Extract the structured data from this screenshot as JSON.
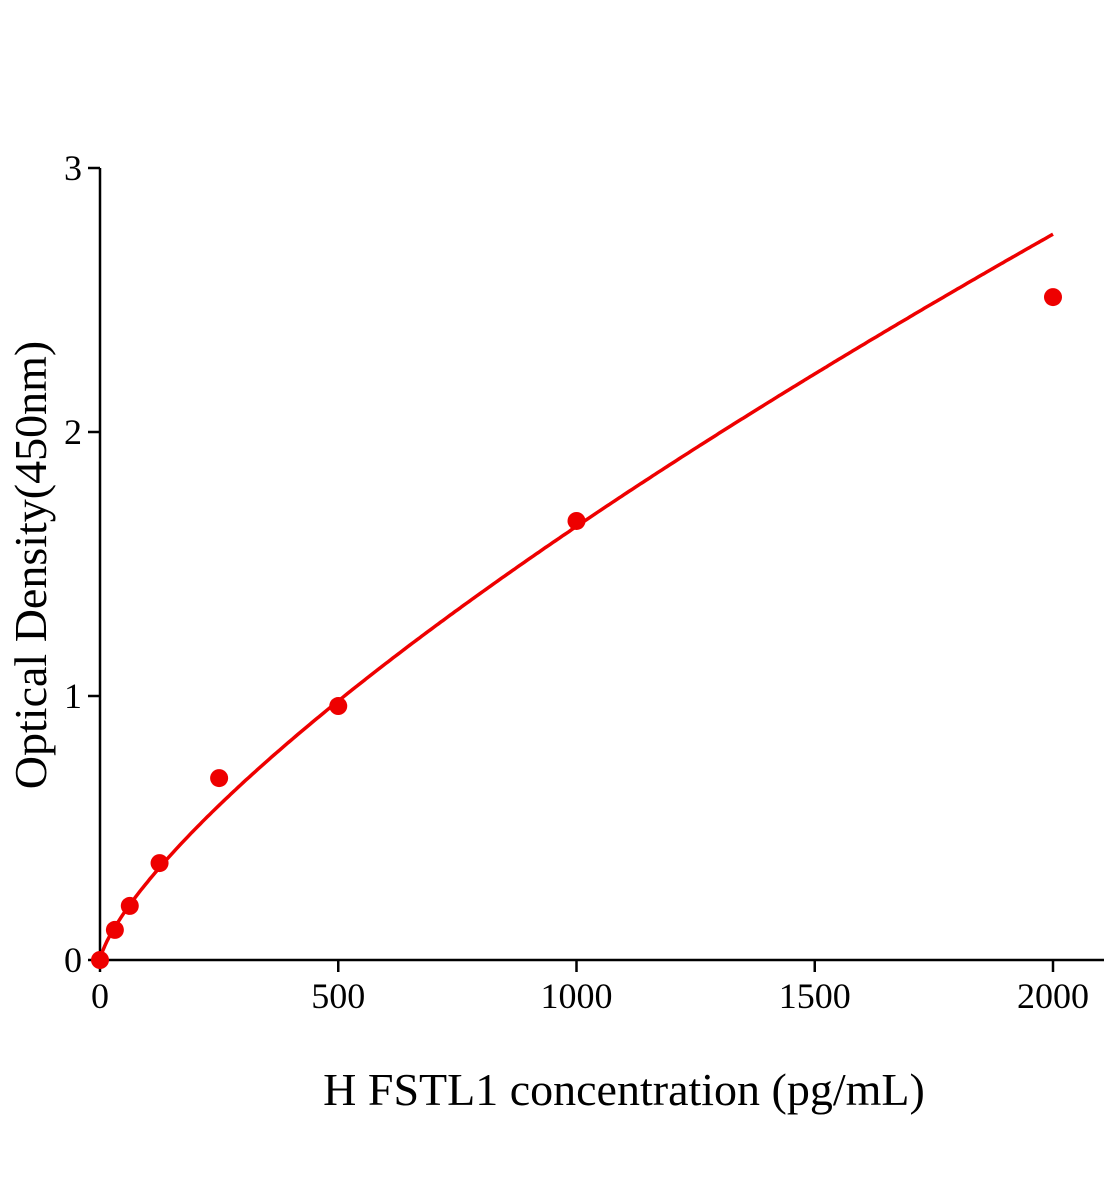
{
  "chart_data": {
    "type": "scatter",
    "title": "",
    "xlabel": "H FSTL1 concentration (pg/mL)",
    "ylabel": "Optical Density(450nm)",
    "xlim": [
      0,
      2100
    ],
    "ylim": [
      0,
      3
    ],
    "xticks": [
      0,
      500,
      1000,
      1500,
      2000
    ],
    "yticks": [
      0,
      1,
      2,
      3
    ],
    "grid": false,
    "legend": "none",
    "color": "#ee0000",
    "series": [
      {
        "x": [
          0,
          31.25,
          62.5,
          125,
          250,
          500,
          1000,
          2000
        ],
        "y": [
          0.0,
          0.114,
          0.205,
          0.367,
          0.689,
          0.962,
          1.663,
          2.511
        ],
        "fit": "smooth curve"
      }
    ]
  }
}
